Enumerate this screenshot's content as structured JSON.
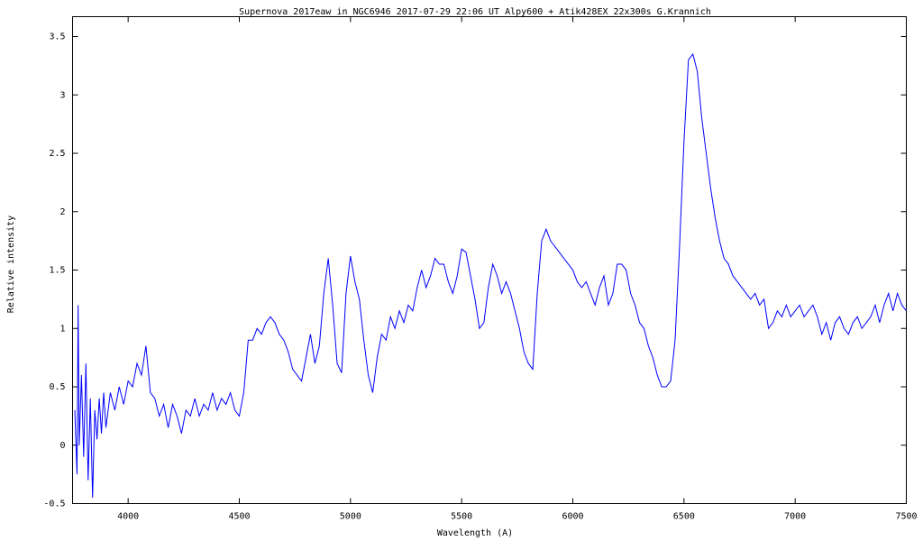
{
  "chart_data": {
    "type": "line",
    "title": "Supernova 2017eaw in NGC6946   2017-07-29 22:06 UT   Alpy600 + Atik428EX  22x300s   G.Krannich",
    "xlabel": "Wavelength (A)",
    "ylabel": "Relative intensity",
    "color": "#0000ff",
    "xlim": [
      3750,
      7500
    ],
    "ylim": [
      -0.5,
      3.67
    ],
    "xticks": [
      4000,
      4500,
      5000,
      5500,
      6000,
      6500,
      7000,
      7500
    ],
    "yticks": [
      -0.5,
      0,
      0.5,
      1,
      1.5,
      2,
      2.5,
      3,
      3.5
    ],
    "x": [
      3760,
      3770,
      3775,
      3780,
      3790,
      3800,
      3810,
      3820,
      3830,
      3840,
      3850,
      3860,
      3870,
      3880,
      3890,
      3900,
      3920,
      3940,
      3960,
      3980,
      4000,
      4020,
      4040,
      4060,
      4080,
      4100,
      4120,
      4140,
      4160,
      4180,
      4200,
      4220,
      4240,
      4260,
      4280,
      4300,
      4320,
      4340,
      4360,
      4380,
      4400,
      4420,
      4440,
      4460,
      4480,
      4500,
      4520,
      4540,
      4560,
      4580,
      4600,
      4620,
      4640,
      4660,
      4680,
      4700,
      4720,
      4740,
      4760,
      4780,
      4800,
      4820,
      4840,
      4860,
      4880,
      4900,
      4920,
      4940,
      4960,
      4980,
      5000,
      5020,
      5040,
      5060,
      5080,
      5100,
      5120,
      5140,
      5160,
      5180,
      5200,
      5220,
      5240,
      5260,
      5280,
      5300,
      5320,
      5340,
      5360,
      5380,
      5400,
      5420,
      5440,
      5460,
      5480,
      5500,
      5520,
      5540,
      5560,
      5580,
      5600,
      5620,
      5640,
      5660,
      5680,
      5700,
      5720,
      5740,
      5760,
      5780,
      5800,
      5820,
      5840,
      5860,
      5880,
      5900,
      5920,
      5940,
      5960,
      5980,
      6000,
      6020,
      6040,
      6060,
      6080,
      6100,
      6120,
      6140,
      6160,
      6180,
      6200,
      6220,
      6240,
      6260,
      6280,
      6300,
      6320,
      6340,
      6360,
      6380,
      6400,
      6420,
      6440,
      6460,
      6480,
      6500,
      6520,
      6540,
      6560,
      6580,
      6600,
      6620,
      6640,
      6660,
      6680,
      6700,
      6720,
      6740,
      6760,
      6780,
      6800,
      6820,
      6840,
      6860,
      6880,
      6900,
      6920,
      6940,
      6960,
      6980,
      7000,
      7020,
      7040,
      7060,
      7080,
      7100,
      7120,
      7140,
      7160,
      7180,
      7200,
      7220,
      7240,
      7260,
      7280,
      7300,
      7320,
      7340,
      7360,
      7380,
      7400,
      7420,
      7440,
      7460,
      7480,
      7500
    ],
    "values": [
      0.3,
      -0.25,
      1.2,
      0.0,
      0.6,
      -0.1,
      0.7,
      -0.3,
      0.4,
      -0.45,
      0.3,
      0.05,
      0.4,
      0.1,
      0.45,
      0.15,
      0.45,
      0.3,
      0.5,
      0.35,
      0.55,
      0.5,
      0.7,
      0.6,
      0.85,
      0.45,
      0.4,
      0.25,
      0.35,
      0.15,
      0.35,
      0.25,
      0.1,
      0.3,
      0.25,
      0.4,
      0.25,
      0.35,
      0.3,
      0.45,
      0.3,
      0.4,
      0.35,
      0.45,
      0.3,
      0.25,
      0.45,
      0.9,
      0.9,
      1.0,
      0.95,
      1.05,
      1.1,
      1.05,
      0.95,
      0.9,
      0.8,
      0.65,
      0.6,
      0.55,
      0.75,
      0.95,
      0.7,
      0.85,
      1.3,
      1.6,
      1.2,
      0.7,
      0.62,
      1.3,
      1.62,
      1.4,
      1.25,
      0.9,
      0.6,
      0.45,
      0.75,
      0.95,
      0.9,
      1.1,
      1.0,
      1.15,
      1.05,
      1.2,
      1.15,
      1.35,
      1.5,
      1.35,
      1.45,
      1.6,
      1.55,
      1.55,
      1.4,
      1.3,
      1.45,
      1.68,
      1.65,
      1.45,
      1.25,
      1.0,
      1.05,
      1.35,
      1.55,
      1.45,
      1.3,
      1.4,
      1.3,
      1.15,
      1.0,
      0.8,
      0.7,
      0.65,
      1.3,
      1.75,
      1.85,
      1.75,
      1.7,
      1.65,
      1.6,
      1.55,
      1.5,
      1.4,
      1.35,
      1.4,
      1.3,
      1.2,
      1.35,
      1.45,
      1.2,
      1.3,
      1.55,
      1.55,
      1.5,
      1.3,
      1.2,
      1.05,
      1.0,
      0.85,
      0.75,
      0.6,
      0.5,
      0.5,
      0.55,
      0.9,
      1.7,
      2.6,
      3.3,
      3.35,
      3.2,
      2.8,
      2.5,
      2.2,
      1.95,
      1.75,
      1.6,
      1.55,
      1.45,
      1.4,
      1.35,
      1.3,
      1.25,
      1.3,
      1.2,
      1.25,
      1.0,
      1.05,
      1.15,
      1.1,
      1.2,
      1.1,
      1.15,
      1.2,
      1.1,
      1.15,
      1.2,
      1.1,
      0.95,
      1.05,
      0.9,
      1.05,
      1.1,
      1.0,
      0.95,
      1.05,
      1.1,
      1.0,
      1.05,
      1.1,
      1.2,
      1.05,
      1.2,
      1.3,
      1.15,
      1.3,
      1.2,
      1.15
    ]
  }
}
